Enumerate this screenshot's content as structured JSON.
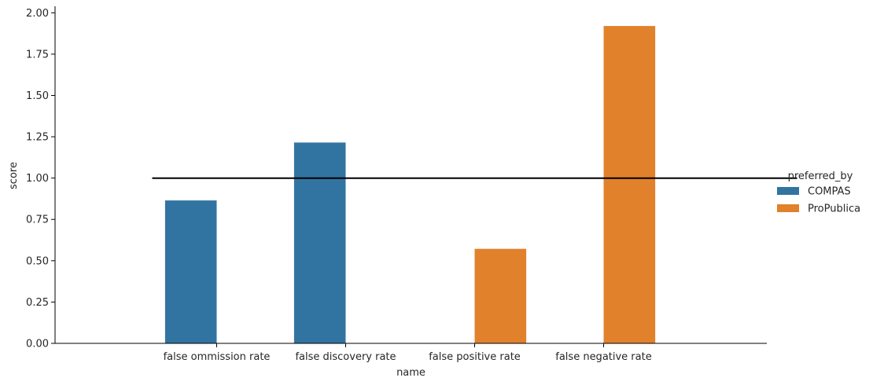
{
  "chart_data": {
    "type": "bar",
    "categories": [
      "false ommission rate",
      "false discovery rate",
      "false positive rate",
      "false negative rate"
    ],
    "series": [
      {
        "name": "COMPAS",
        "color": "#3274a1",
        "values": [
          0.865,
          1.215,
          null,
          null
        ]
      },
      {
        "name": "ProPublica",
        "color": "#e1812c",
        "values": [
          null,
          null,
          0.572,
          1.92
        ]
      }
    ],
    "reference_line": {
      "y": 1.0,
      "x_from_category": -0.5,
      "x_to_category": 4.5,
      "color": "#000000"
    },
    "xlabel": "name",
    "ylabel": "score",
    "ylim": [
      0,
      2.03
    ],
    "yticks": [
      0.0,
      0.25,
      0.5,
      0.75,
      1.0,
      1.25,
      1.5,
      1.75,
      2.0
    ],
    "ytick_labels": [
      "0.00",
      "0.25",
      "0.50",
      "0.75",
      "1.00",
      "1.25",
      "1.50",
      "1.75",
      "2.00"
    ],
    "legend": {
      "title": "preferred_by",
      "placement": "right"
    },
    "grid": false
  }
}
